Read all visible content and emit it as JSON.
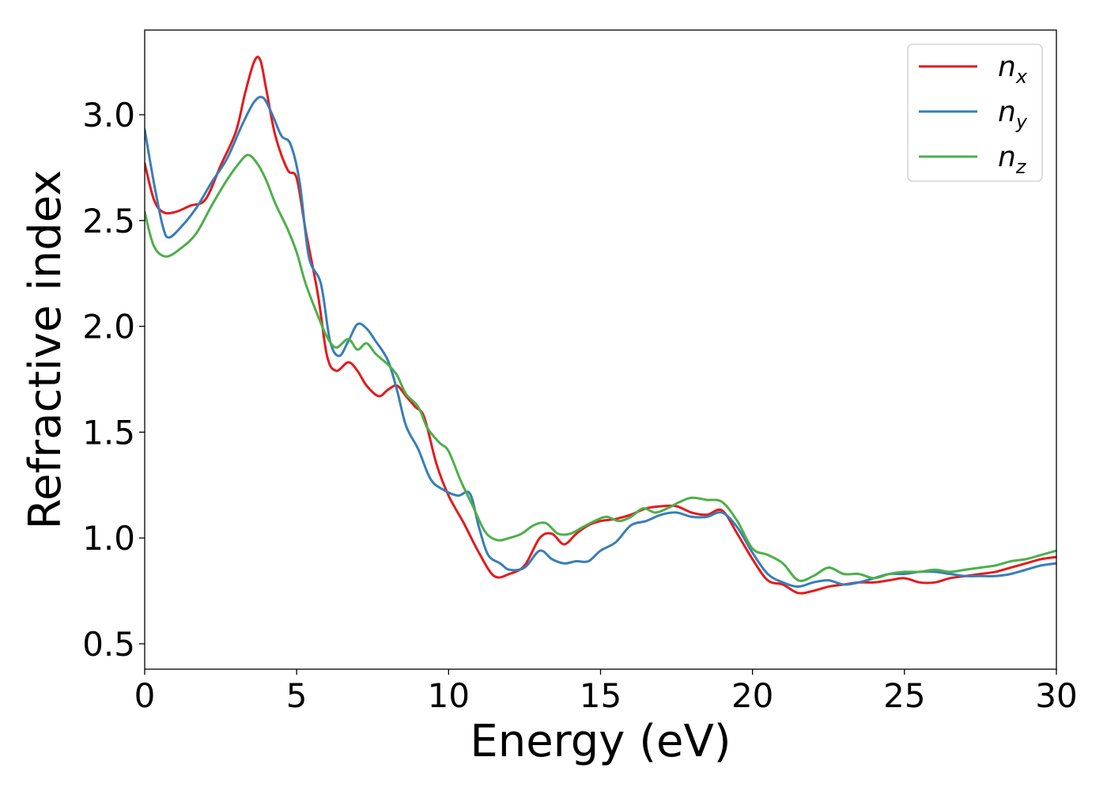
{
  "chart_data": {
    "type": "line",
    "title": "",
    "xlabel": "Energy (eV)",
    "ylabel": "Refractive index",
    "xlim": [
      0,
      30
    ],
    "ylim": [
      0.38,
      3.4
    ],
    "xticks": [
      0,
      5,
      10,
      15,
      20,
      25,
      30
    ],
    "xtick_labels": [
      "0",
      "5",
      "10",
      "15",
      "20",
      "25",
      "30"
    ],
    "yticks": [
      0.5,
      1.0,
      1.5,
      2.0,
      2.5,
      3.0
    ],
    "ytick_labels": [
      "0.5",
      "1.0",
      "1.5",
      "2.0",
      "2.5",
      "3.0"
    ],
    "grid": false,
    "legend_position": "top-right",
    "series": [
      {
        "name": "n_x",
        "label_base": "n",
        "label_sub": "x",
        "color": "#e41a1c",
        "points": [
          [
            0,
            2.77
          ],
          [
            0.3,
            2.6
          ],
          [
            0.6,
            2.54
          ],
          [
            1.0,
            2.54
          ],
          [
            1.5,
            2.57
          ],
          [
            2.0,
            2.6
          ],
          [
            2.5,
            2.76
          ],
          [
            3.0,
            2.92
          ],
          [
            3.3,
            3.1
          ],
          [
            3.6,
            3.25
          ],
          [
            3.8,
            3.26
          ],
          [
            4.0,
            3.12
          ],
          [
            4.3,
            2.9
          ],
          [
            4.7,
            2.74
          ],
          [
            5.0,
            2.7
          ],
          [
            5.3,
            2.45
          ],
          [
            5.7,
            2.15
          ],
          [
            6.0,
            1.86
          ],
          [
            6.3,
            1.79
          ],
          [
            6.7,
            1.83
          ],
          [
            7.0,
            1.79
          ],
          [
            7.3,
            1.72
          ],
          [
            7.7,
            1.67
          ],
          [
            8.0,
            1.7
          ],
          [
            8.3,
            1.72
          ],
          [
            8.6,
            1.67
          ],
          [
            8.9,
            1.62
          ],
          [
            9.2,
            1.57
          ],
          [
            9.6,
            1.35
          ],
          [
            10.0,
            1.2
          ],
          [
            10.5,
            1.07
          ],
          [
            11.0,
            0.93
          ],
          [
            11.5,
            0.82
          ],
          [
            12.0,
            0.83
          ],
          [
            12.5,
            0.87
          ],
          [
            13.0,
            1.0
          ],
          [
            13.4,
            1.02
          ],
          [
            13.8,
            0.97
          ],
          [
            14.2,
            1.02
          ],
          [
            14.6,
            1.06
          ],
          [
            15.0,
            1.08
          ],
          [
            15.5,
            1.09
          ],
          [
            16.0,
            1.11
          ],
          [
            16.5,
            1.14
          ],
          [
            17.0,
            1.15
          ],
          [
            17.5,
            1.15
          ],
          [
            18.0,
            1.12
          ],
          [
            18.5,
            1.11
          ],
          [
            19.0,
            1.13
          ],
          [
            19.5,
            1.02
          ],
          [
            20.0,
            0.9
          ],
          [
            20.5,
            0.8
          ],
          [
            21.0,
            0.78
          ],
          [
            21.5,
            0.74
          ],
          [
            22.0,
            0.75
          ],
          [
            22.5,
            0.77
          ],
          [
            23.0,
            0.78
          ],
          [
            23.5,
            0.79
          ],
          [
            24.0,
            0.79
          ],
          [
            24.5,
            0.8
          ],
          [
            25.0,
            0.81
          ],
          [
            25.5,
            0.79
          ],
          [
            26.0,
            0.79
          ],
          [
            26.5,
            0.81
          ],
          [
            27.0,
            0.82
          ],
          [
            27.5,
            0.83
          ],
          [
            28.0,
            0.84
          ],
          [
            28.5,
            0.86
          ],
          [
            29.0,
            0.88
          ],
          [
            29.5,
            0.9
          ],
          [
            30.0,
            0.91
          ]
        ]
      },
      {
        "name": "n_y",
        "label_base": "n",
        "label_sub": "y",
        "color": "#377eb8",
        "points": [
          [
            0,
            2.93
          ],
          [
            0.3,
            2.68
          ],
          [
            0.6,
            2.47
          ],
          [
            0.8,
            2.42
          ],
          [
            1.2,
            2.47
          ],
          [
            1.7,
            2.56
          ],
          [
            2.2,
            2.68
          ],
          [
            2.7,
            2.79
          ],
          [
            3.2,
            2.95
          ],
          [
            3.6,
            3.06
          ],
          [
            3.9,
            3.08
          ],
          [
            4.2,
            3.0
          ],
          [
            4.5,
            2.9
          ],
          [
            4.8,
            2.86
          ],
          [
            5.1,
            2.68
          ],
          [
            5.4,
            2.33
          ],
          [
            5.8,
            2.2
          ],
          [
            6.1,
            1.93
          ],
          [
            6.4,
            1.86
          ],
          [
            6.7,
            1.93
          ],
          [
            7.0,
            2.01
          ],
          [
            7.3,
            1.99
          ],
          [
            7.6,
            1.93
          ],
          [
            8.0,
            1.84
          ],
          [
            8.3,
            1.7
          ],
          [
            8.6,
            1.53
          ],
          [
            9.0,
            1.42
          ],
          [
            9.4,
            1.28
          ],
          [
            9.8,
            1.23
          ],
          [
            10.3,
            1.2
          ],
          [
            10.7,
            1.21
          ],
          [
            11.0,
            1.05
          ],
          [
            11.3,
            0.92
          ],
          [
            11.7,
            0.88
          ],
          [
            12.0,
            0.85
          ],
          [
            12.5,
            0.86
          ],
          [
            13.0,
            0.94
          ],
          [
            13.4,
            0.9
          ],
          [
            13.8,
            0.88
          ],
          [
            14.2,
            0.89
          ],
          [
            14.6,
            0.89
          ],
          [
            15.0,
            0.94
          ],
          [
            15.5,
            0.98
          ],
          [
            16.0,
            1.06
          ],
          [
            16.5,
            1.08
          ],
          [
            17.0,
            1.11
          ],
          [
            17.5,
            1.12
          ],
          [
            18.0,
            1.1
          ],
          [
            18.5,
            1.1
          ],
          [
            19.0,
            1.12
          ],
          [
            19.5,
            1.05
          ],
          [
            20.0,
            0.93
          ],
          [
            20.5,
            0.83
          ],
          [
            21.0,
            0.79
          ],
          [
            21.5,
            0.77
          ],
          [
            22.0,
            0.79
          ],
          [
            22.5,
            0.8
          ],
          [
            23.0,
            0.78
          ],
          [
            23.5,
            0.79
          ],
          [
            24.0,
            0.81
          ],
          [
            24.5,
            0.83
          ],
          [
            25.0,
            0.83
          ],
          [
            25.5,
            0.84
          ],
          [
            26.0,
            0.84
          ],
          [
            26.5,
            0.83
          ],
          [
            27.0,
            0.82
          ],
          [
            27.5,
            0.82
          ],
          [
            28.0,
            0.82
          ],
          [
            28.5,
            0.83
          ],
          [
            29.0,
            0.85
          ],
          [
            29.5,
            0.87
          ],
          [
            30.0,
            0.88
          ]
        ]
      },
      {
        "name": "n_z",
        "label_base": "n",
        "label_sub": "z",
        "color": "#4daf4a",
        "points": [
          [
            0,
            2.54
          ],
          [
            0.3,
            2.38
          ],
          [
            0.7,
            2.33
          ],
          [
            1.2,
            2.37
          ],
          [
            1.7,
            2.44
          ],
          [
            2.2,
            2.57
          ],
          [
            2.7,
            2.69
          ],
          [
            3.1,
            2.77
          ],
          [
            3.4,
            2.81
          ],
          [
            3.7,
            2.77
          ],
          [
            4.0,
            2.69
          ],
          [
            4.3,
            2.58
          ],
          [
            4.7,
            2.46
          ],
          [
            5.0,
            2.35
          ],
          [
            5.3,
            2.2
          ],
          [
            5.7,
            2.05
          ],
          [
            6.0,
            1.95
          ],
          [
            6.3,
            1.9
          ],
          [
            6.7,
            1.94
          ],
          [
            7.0,
            1.89
          ],
          [
            7.3,
            1.92
          ],
          [
            7.6,
            1.87
          ],
          [
            8.0,
            1.82
          ],
          [
            8.3,
            1.77
          ],
          [
            8.6,
            1.68
          ],
          [
            9.0,
            1.62
          ],
          [
            9.3,
            1.52
          ],
          [
            9.7,
            1.45
          ],
          [
            10.0,
            1.41
          ],
          [
            10.4,
            1.27
          ],
          [
            10.8,
            1.15
          ],
          [
            11.2,
            1.03
          ],
          [
            11.6,
            0.99
          ],
          [
            12.0,
            1.0
          ],
          [
            12.4,
            1.02
          ],
          [
            12.8,
            1.06
          ],
          [
            13.2,
            1.07
          ],
          [
            13.6,
            1.02
          ],
          [
            14.0,
            1.02
          ],
          [
            14.4,
            1.05
          ],
          [
            14.8,
            1.08
          ],
          [
            15.2,
            1.1
          ],
          [
            15.6,
            1.08
          ],
          [
            16.0,
            1.1
          ],
          [
            16.4,
            1.14
          ],
          [
            16.8,
            1.12
          ],
          [
            17.2,
            1.14
          ],
          [
            17.6,
            1.17
          ],
          [
            18.0,
            1.19
          ],
          [
            18.5,
            1.18
          ],
          [
            19.0,
            1.17
          ],
          [
            19.5,
            1.08
          ],
          [
            20.0,
            0.95
          ],
          [
            20.5,
            0.92
          ],
          [
            21.0,
            0.88
          ],
          [
            21.5,
            0.8
          ],
          [
            22.0,
            0.82
          ],
          [
            22.5,
            0.86
          ],
          [
            23.0,
            0.83
          ],
          [
            23.5,
            0.83
          ],
          [
            24.0,
            0.81
          ],
          [
            24.5,
            0.83
          ],
          [
            25.0,
            0.84
          ],
          [
            25.5,
            0.84
          ],
          [
            26.0,
            0.85
          ],
          [
            26.5,
            0.84
          ],
          [
            27.0,
            0.85
          ],
          [
            27.5,
            0.86
          ],
          [
            28.0,
            0.87
          ],
          [
            28.5,
            0.89
          ],
          [
            29.0,
            0.9
          ],
          [
            29.5,
            0.92
          ],
          [
            30.0,
            0.94
          ]
        ]
      }
    ]
  }
}
